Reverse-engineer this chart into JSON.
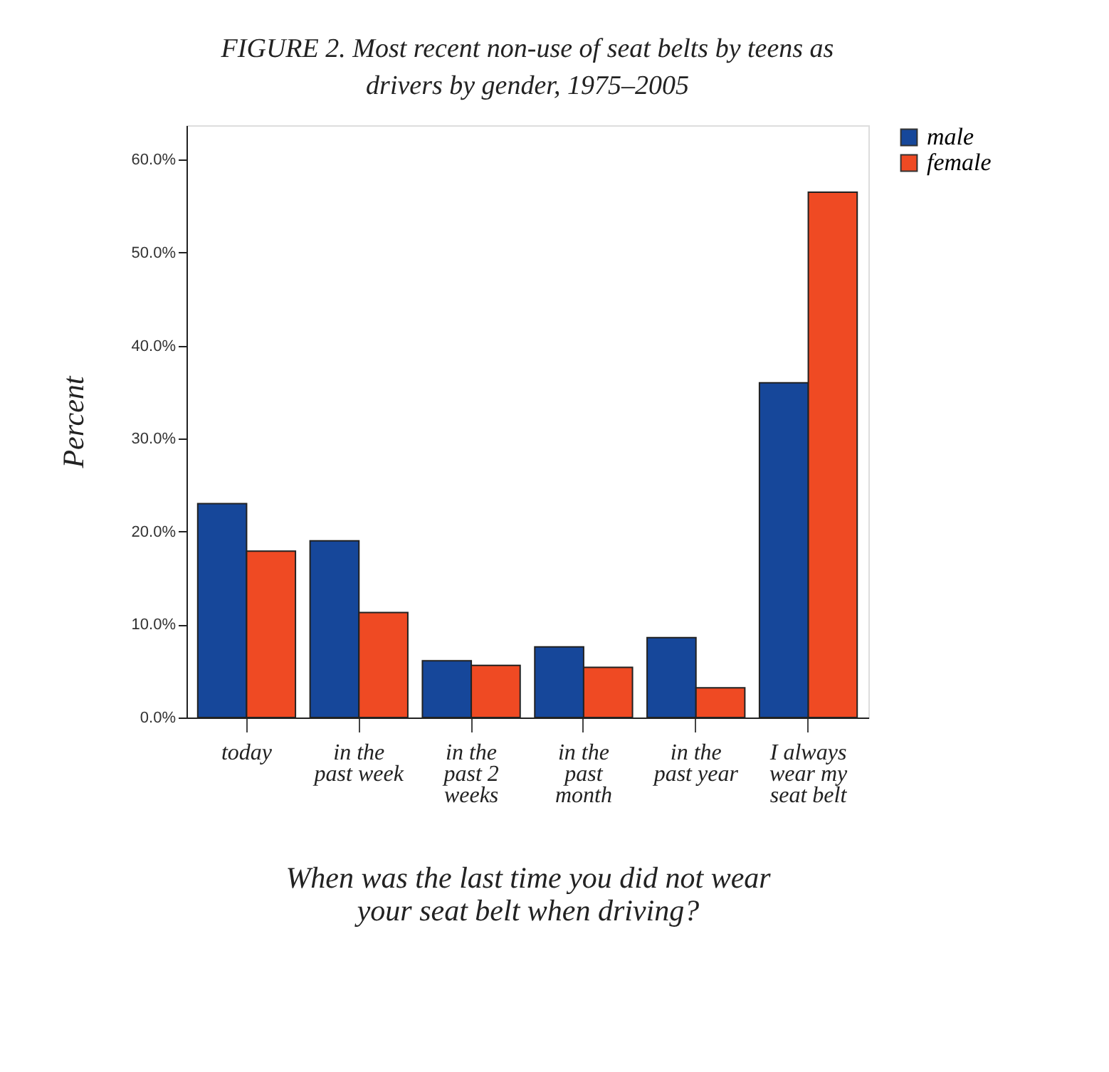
{
  "chart_data": {
    "type": "bar",
    "title": "FIGURE 2. Most recent non-use of seat belts by teens as drivers by gender, 1975–2005",
    "xlabel": "When was the last time you did not wear your seat belt when driving?",
    "ylabel": "Percent",
    "categories": [
      "today",
      "in the\npast week",
      "in the\npast 2\nweeks",
      "in the\npast\nmonth",
      "in the\npast year",
      "I always\nwear my\nseat belt"
    ],
    "series": [
      {
        "name": "male",
        "color": "#16479a",
        "values": [
          23.0,
          19.0,
          6.1,
          7.6,
          8.6,
          36.0
        ]
      },
      {
        "name": "female",
        "color": "#ef4a23",
        "values": [
          17.9,
          11.3,
          5.6,
          5.4,
          3.2,
          56.5
        ]
      }
    ],
    "ylim": [
      0,
      63.7
    ],
    "yticks": [
      {
        "value": 0,
        "label": "0.0%"
      },
      {
        "value": 10,
        "label": "10.0%"
      },
      {
        "value": 20,
        "label": "20.0%"
      },
      {
        "value": 30,
        "label": "30.0%"
      },
      {
        "value": 40,
        "label": "40.0%"
      },
      {
        "value": 50,
        "label": "50.0%"
      },
      {
        "value": 60,
        "label": "60.0%"
      }
    ],
    "grid": false,
    "legend": "top right"
  }
}
